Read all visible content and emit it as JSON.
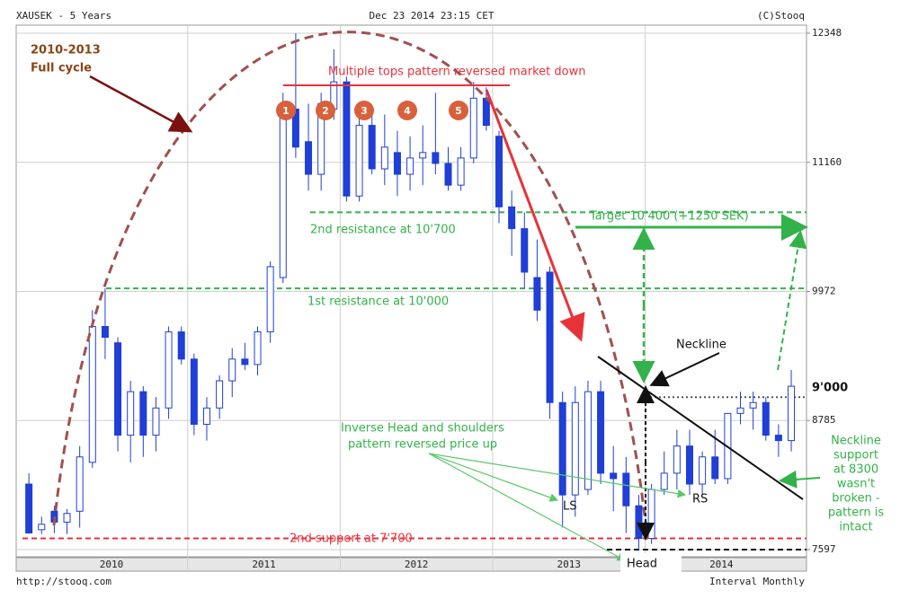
{
  "chart_data": {
    "type": "candlestick",
    "title": "XAUSEK - 5 Years",
    "timestamp": "Dec 23 2014 23:15 CET",
    "credit": "(C)Stooq",
    "source": "http://stooq.com",
    "interval": "Interval Monthly",
    "years": [
      "2010",
      "2011",
      "2012",
      "2013",
      "2014"
    ],
    "categories": [
      null,
      null,
      null,
      null,
      null,
      null,
      null,
      null,
      null,
      null,
      null,
      null,
      null,
      null,
      null,
      null,
      null,
      null,
      null,
      null,
      null,
      null,
      null,
      null,
      null,
      null,
      null,
      null,
      null,
      null,
      null,
      null,
      null,
      null,
      null,
      null,
      null,
      null,
      null,
      null,
      null,
      null,
      null,
      null,
      null,
      null,
      null,
      null,
      null,
      null,
      null,
      null,
      null,
      null,
      null,
      null,
      null,
      null,
      null,
      null,
      null
    ],
    "open": [
      8200,
      7780,
      7950,
      7850,
      7950,
      8400,
      9650,
      9500,
      8650,
      9050,
      8650,
      8900,
      9600,
      9350,
      8750,
      8900,
      9150,
      9350,
      9300,
      9600,
      10100,
      11650,
      11350,
      11050,
      11650,
      11900,
      10850,
      11500,
      11100,
      11250,
      11050,
      11200,
      11250,
      11150,
      10950,
      11200,
      11750,
      11400,
      10750,
      10550,
      10100,
      10150,
      8950,
      8100,
      8150,
      9050,
      8300,
      8300,
      8000,
      7700,
      8150,
      8300,
      8550,
      8200,
      8450,
      8250,
      8850,
      8900,
      8950,
      8650,
      8600
    ],
    "high": [
      8300,
      7900,
      8000,
      7970,
      8550,
      9800,
      10000,
      9550,
      9150,
      9100,
      9000,
      9650,
      9650,
      9400,
      9000,
      9200,
      9450,
      9500,
      9650,
      10250,
      11800,
      12348,
      11700,
      11800,
      12200,
      11950,
      11600,
      11650,
      11600,
      11450,
      11400,
      11500,
      11800,
      11300,
      11300,
      11900,
      11850,
      11450,
      10900,
      10700,
      10450,
      10200,
      9050,
      9100,
      9150,
      9150,
      8550,
      8450,
      8100,
      8200,
      8500,
      8700,
      8700,
      8500,
      8700,
      8850,
      9050,
      9050,
      9000,
      8750,
      9250
    ],
    "low": [
      7750,
      7740,
      7750,
      7740,
      7800,
      8350,
      9350,
      8500,
      8400,
      8450,
      8500,
      8800,
      9300,
      8650,
      8600,
      8800,
      9000,
      9250,
      9200,
      9500,
      10050,
      11200,
      10900,
      10900,
      11550,
      10800,
      10800,
      11050,
      10950,
      10850,
      10900,
      10950,
      11050,
      10900,
      10900,
      11150,
      11450,
      10600,
      10300,
      10000,
      9700,
      8800,
      7800,
      7900,
      8100,
      8200,
      7950,
      7750,
      7597,
      7650,
      8100,
      8150,
      8100,
      8100,
      8200,
      8200,
      8750,
      8700,
      8600,
      8450,
      8500
    ],
    "close": [
      7750,
      7830,
      7850,
      7930,
      8450,
      9650,
      9550,
      8650,
      9050,
      8650,
      8900,
      9600,
      9350,
      8750,
      8900,
      9150,
      9350,
      9300,
      9600,
      10200,
      11700,
      11300,
      11050,
      11700,
      11900,
      10850,
      11500,
      11100,
      11300,
      11050,
      11200,
      11250,
      11150,
      10950,
      11200,
      11750,
      11500,
      10750,
      10550,
      10150,
      9800,
      8950,
      8100,
      8950,
      9050,
      8300,
      8250,
      8000,
      7700,
      8150,
      8300,
      8550,
      8200,
      8450,
      8250,
      8850,
      8900,
      8950,
      8650,
      8600,
      9100
    ],
    "up_color": "#ffffff",
    "down_color": "#1f3fd6",
    "ylim": [
      7531,
      12422
    ],
    "yticks": [
      7597,
      8785,
      9972,
      11160,
      12348
    ],
    "grid": true,
    "levels": [
      {
        "value": 10700,
        "color": "#33b24a",
        "style": "dash"
      },
      {
        "value": 10000,
        "color": "#33b24a",
        "style": "dash"
      },
      {
        "value": 7700,
        "color": "#e8323a",
        "style": "dash"
      },
      {
        "value": 9000,
        "color": "#555555",
        "style": "dot"
      },
      {
        "value": 7597,
        "color": "#111111",
        "style": "dash"
      }
    ],
    "annotations": {
      "cycle": [
        "2010-2013",
        "Full cycle"
      ],
      "tops": "Multiple tops pattern reversed market down",
      "top_numbers": [
        "1",
        "2",
        "3",
        "4",
        "5"
      ],
      "target": "Target 10'400 (+1250 SEK)",
      "res2": "2nd resistance at 10'700",
      "res1": "1st resistance at 10'000",
      "neckline": "Neckline",
      "neck_level": "9'000",
      "ihs": [
        "Inverse Head and shoulders",
        "pattern reversed price up"
      ],
      "ls": "LS",
      "rs": "RS",
      "head": "Head",
      "support": "2nd support at 7'700",
      "intact": [
        "Neckline",
        "support",
        "at 8300",
        "wasn't",
        "broken -",
        "pattern is",
        "intact"
      ]
    }
  }
}
